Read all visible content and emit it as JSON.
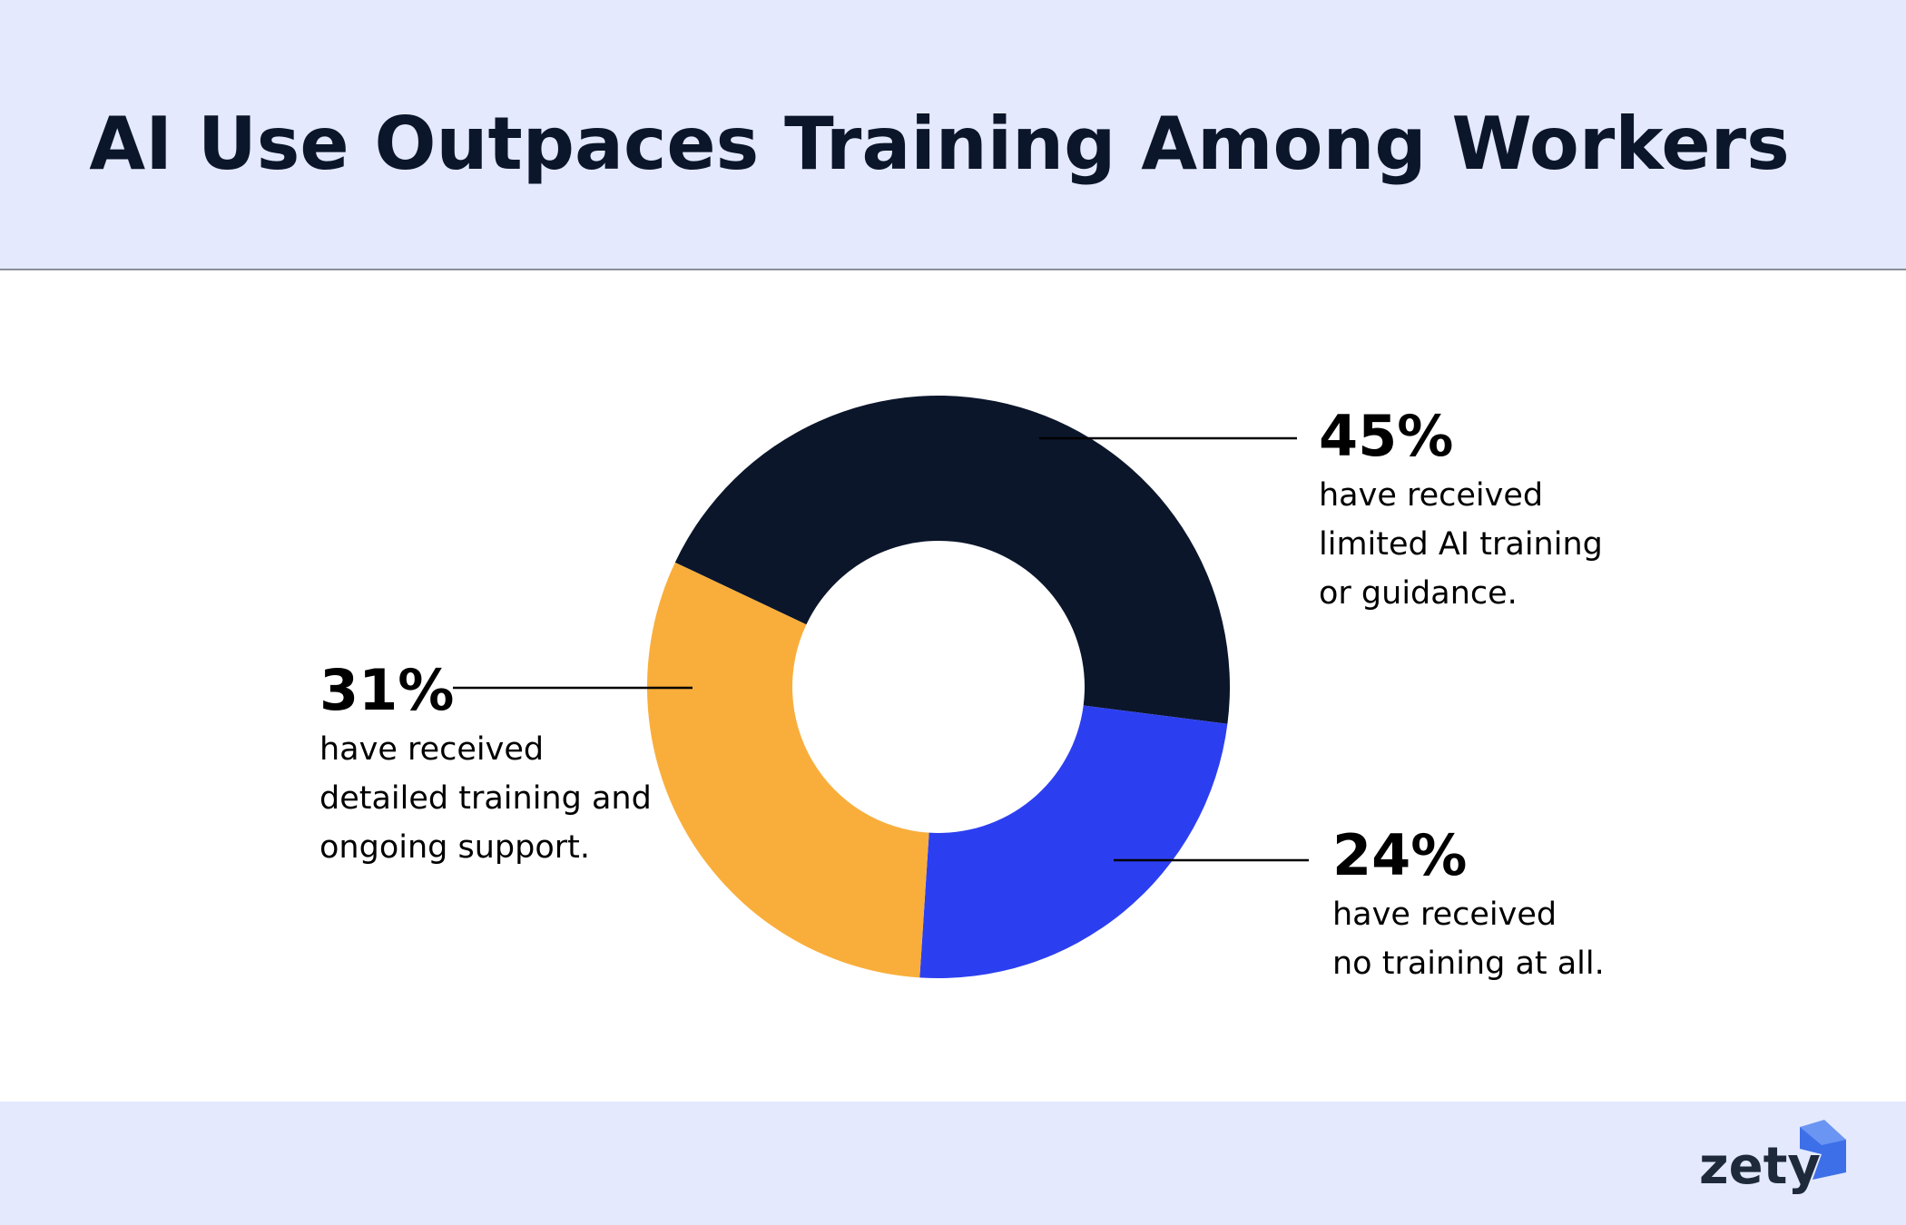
{
  "chart_data": {
    "type": "pie",
    "title": "AI Use Outpaces Training Among Workers",
    "categories": [
      "have received\nlimited AI training\nor guidance.",
      "have received\nno training at all.",
      "have received\ndetailed training and\nongoing support."
    ],
    "values": [
      45,
      24,
      31
    ],
    "value_labels": [
      "45%",
      "24%",
      "31%"
    ],
    "colors": [
      "#0b162b",
      "#2c3ff0",
      "#f9ae3b"
    ],
    "donut": true
  },
  "logo": "zety"
}
